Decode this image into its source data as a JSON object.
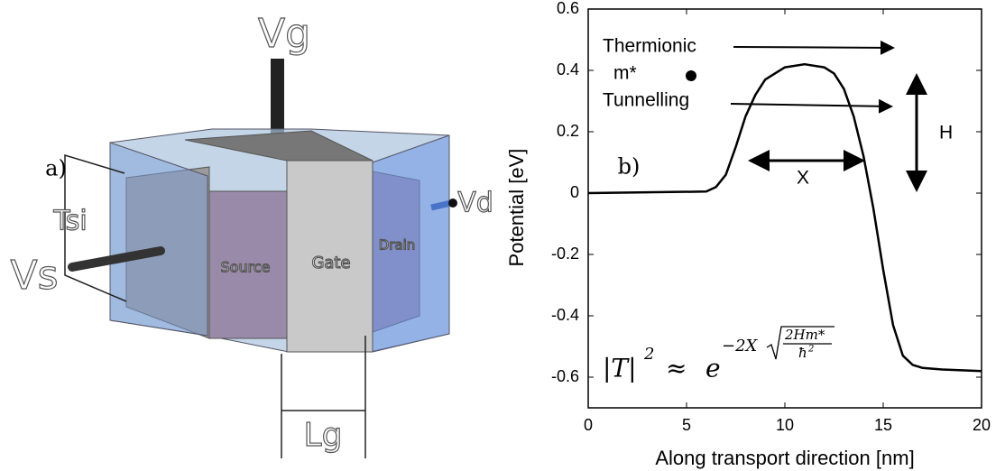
{
  "diagram": {
    "panel_label": "a)",
    "gate_voltage": "Vg",
    "drain_voltage": "Vd",
    "source_voltage": "Vs",
    "thickness": "Tsi",
    "gate_length": "Lg",
    "source": "Source",
    "gate": "Gate",
    "drain": "Drain"
  },
  "chart_data": {
    "type": "line",
    "panel_label": "b)",
    "x_label": "Along transport direction [nm]",
    "y_label": "Potential [eV]",
    "x": [
      0,
      6,
      6.5,
      7,
      7.5,
      8,
      8.5,
      9,
      10,
      11,
      12,
      12.5,
      13,
      13.5,
      14,
      14.5,
      15,
      15.5,
      16,
      16.5,
      17,
      18,
      20
    ],
    "series": [
      {
        "color": "#000000",
        "values": [
          0,
          0.005,
          0.02,
          0.06,
          0.15,
          0.25,
          0.32,
          0.37,
          0.41,
          0.42,
          0.41,
          0.39,
          0.34,
          0.25,
          0.12,
          -0.05,
          -0.25,
          -0.43,
          -0.53,
          -0.56,
          -0.57,
          -0.575,
          -0.58
        ]
      }
    ],
    "xlim": [
      0,
      20
    ],
    "xticks": [
      0,
      5,
      10,
      15,
      20
    ],
    "ylim": [
      -0.7,
      0.6
    ],
    "yticks": [
      -0.6,
      -0.4,
      -0.2,
      0,
      0.2,
      0.4,
      0.6
    ],
    "annotations": {
      "thermionic": "Thermionic",
      "mass": "m*",
      "tunnelling": "Tunnelling",
      "height": "H",
      "width": "X"
    },
    "formula": {
      "lhs": "|T|",
      "lhs_power": "2",
      "relation": "≈",
      "base": "e",
      "exponent": "−2X",
      "numerator": "2Hm*",
      "denominator": "ħ",
      "denominator_power": "2"
    }
  }
}
